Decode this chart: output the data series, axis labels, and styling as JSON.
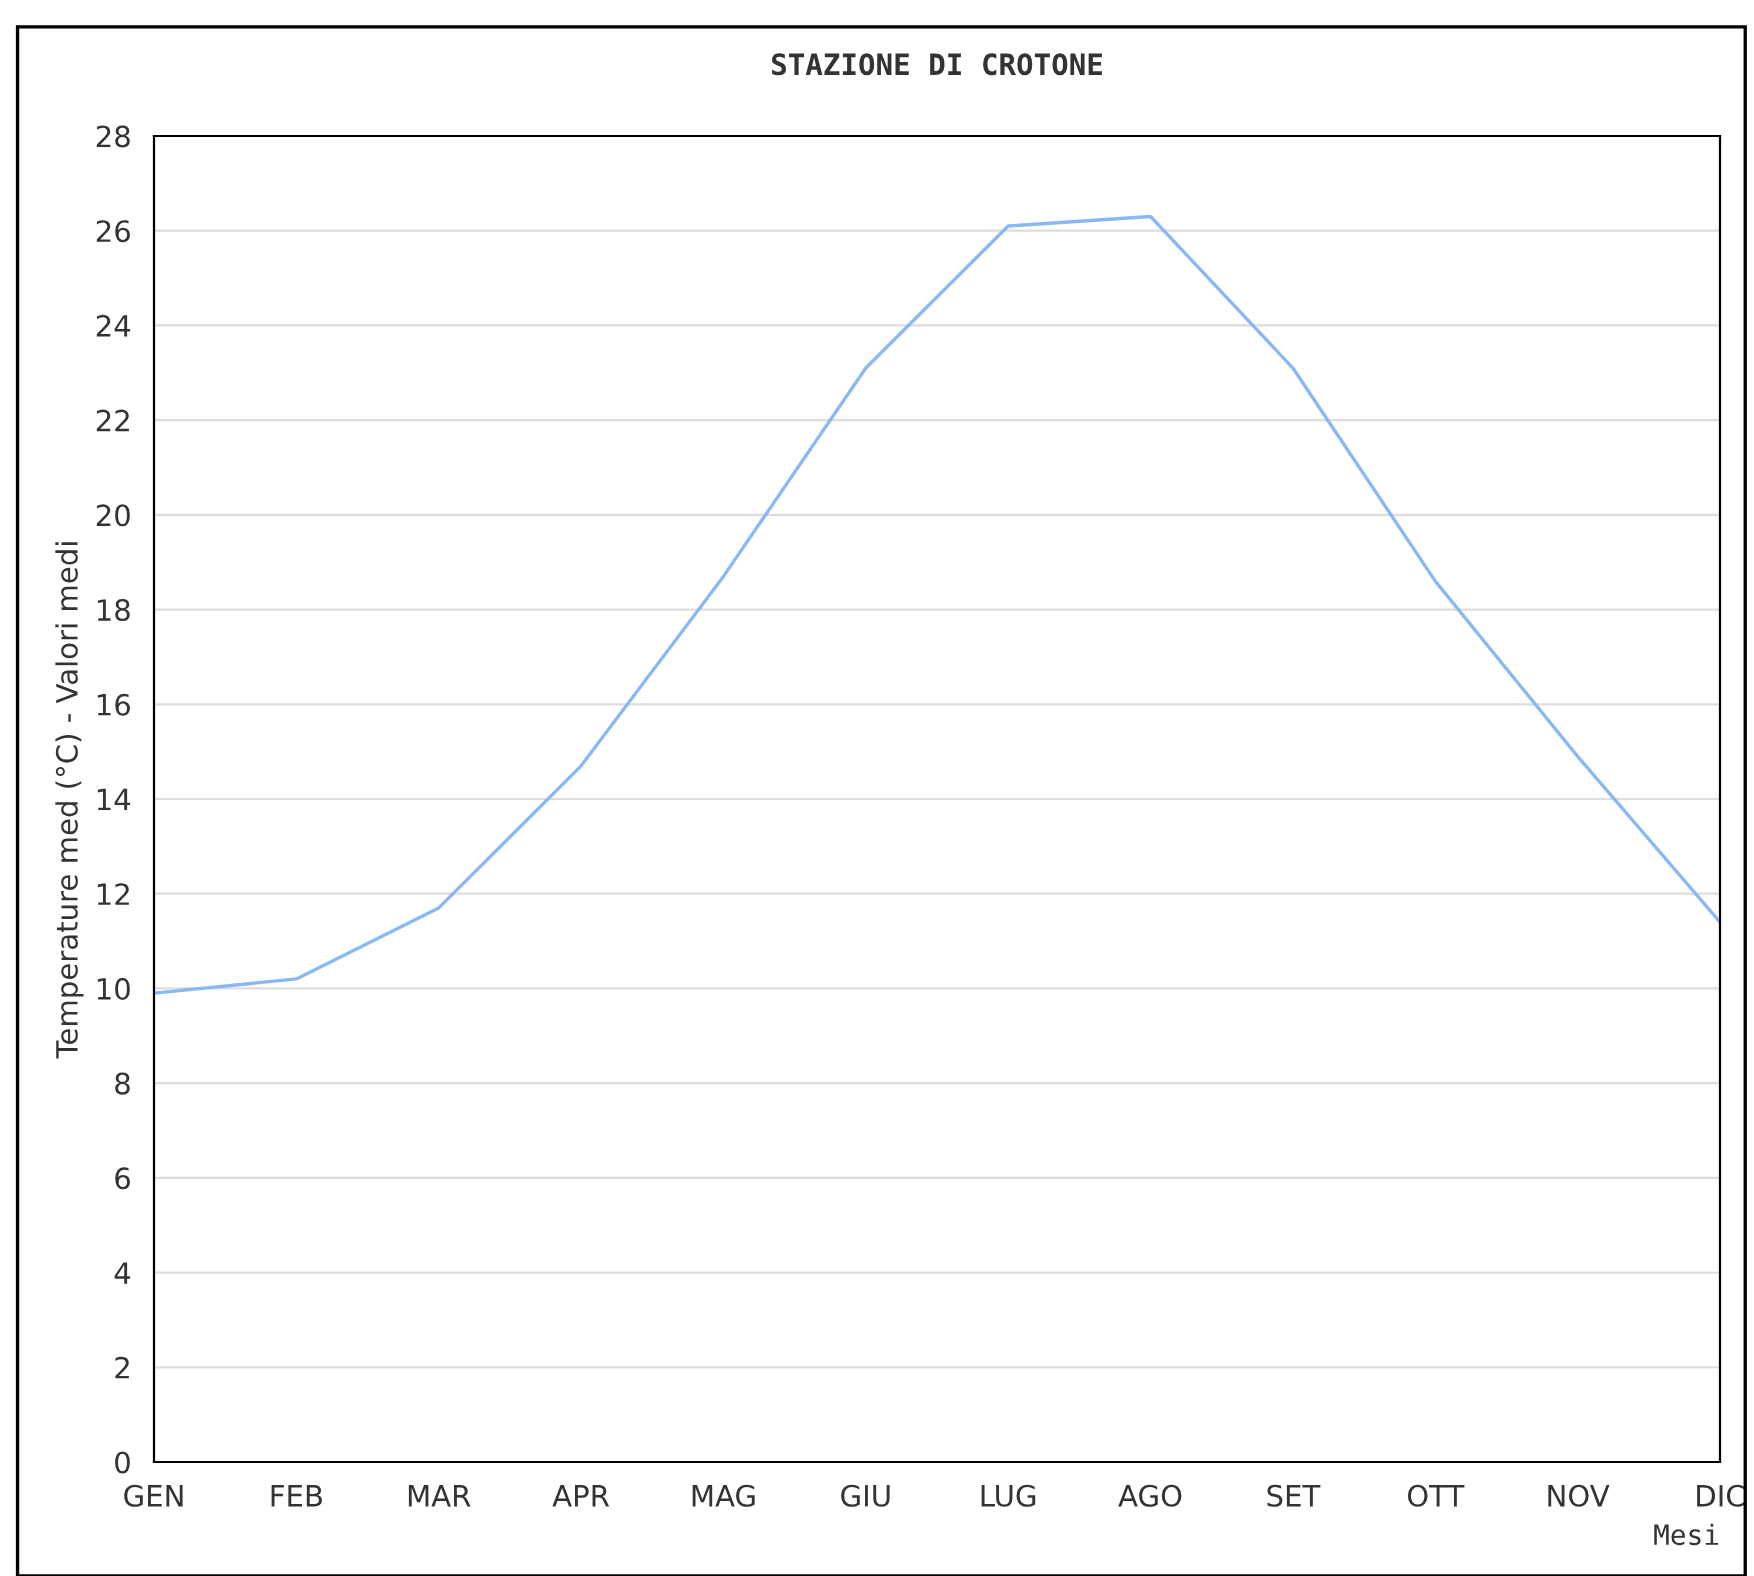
{
  "chart_data": {
    "type": "line",
    "title": "STAZIONE DI CROTONE",
    "xlabel": "Mesi",
    "ylabel": "Temperature med (°C) - Valori medi",
    "categories": [
      "GEN",
      "FEB",
      "MAR",
      "APR",
      "MAG",
      "GIU",
      "LUG",
      "AGO",
      "SET",
      "OTT",
      "NOV",
      "DIC"
    ],
    "series": [
      {
        "color": "#8ab8f5",
        "values": [
          9.9,
          10.2,
          11.7,
          14.7,
          18.7,
          23.1,
          26.1,
          26.3,
          23.1,
          18.6,
          14.9,
          11.4
        ]
      }
    ],
    "ylim": [
      0,
      28
    ],
    "yticks": [
      0,
      2,
      4,
      6,
      8,
      10,
      12,
      14,
      16,
      18,
      20,
      22,
      24,
      26,
      28
    ],
    "grid": "y",
    "legend": false,
    "marker": "none",
    "line_style": "solid"
  }
}
